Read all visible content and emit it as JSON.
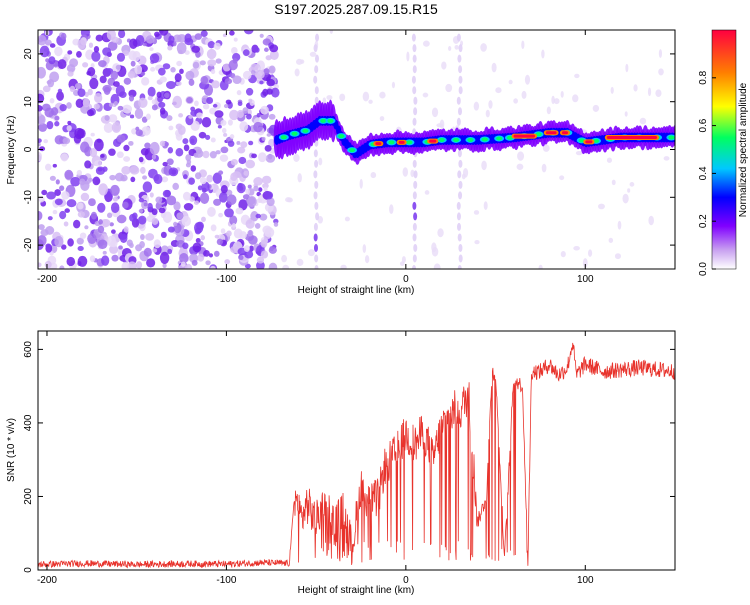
{
  "title": "S197.2025.287.09.15.R15",
  "chart_data": [
    {
      "type": "heatmap",
      "xlabel": "Height of straight line (km)",
      "ylabel": "Frequency (Hz)",
      "xlim": [
        -205,
        150
      ],
      "ylim": [
        -25,
        25
      ],
      "xticks": [
        -200,
        -100,
        0,
        100
      ],
      "yticks": [
        -20,
        -10,
        0,
        10,
        20
      ],
      "noise_region_x": [
        -205,
        -72
      ],
      "signal_track": {
        "x": [
          -72,
          -65,
          -55,
          -48,
          -40,
          -35,
          -28,
          -20,
          -10,
          0,
          10,
          20,
          40,
          60,
          80,
          90,
          100,
          120,
          150
        ],
        "freq": [
          2,
          3,
          4,
          6,
          6,
          2,
          -1,
          1,
          1.5,
          1.5,
          1.5,
          2,
          2,
          2.5,
          3.5,
          3.5,
          1.5,
          2.5,
          2.5
        ]
      },
      "colorbar": {
        "label": "Normalized spectral amplitude",
        "range": [
          0.0,
          1.0
        ],
        "ticks": [
          "0.0",
          "0.2",
          "0.4",
          "0.6",
          "0.8"
        ],
        "colors": [
          "#ffffff",
          "#c8a0f0",
          "#8000ff",
          "#0000ff",
          "#00c8ff",
          "#00ff60",
          "#ffff00",
          "#ff8000",
          "#ff0040"
        ]
      }
    },
    {
      "type": "line",
      "xlabel": "Height of straight line (km)",
      "ylabel": "SNR (10 * v/v)",
      "xlim": [
        -205,
        150
      ],
      "ylim": [
        0,
        650
      ],
      "xticks": [
        -200,
        -100,
        0,
        100
      ],
      "yticks": [
        0,
        200,
        400,
        600
      ],
      "color": "#e8332c",
      "series": [
        {
          "name": "SNR",
          "x": [
            -205,
            -180,
            -150,
            -120,
            -100,
            -80,
            -65,
            -62,
            -58,
            -55,
            -50,
            -45,
            -40,
            -35,
            -30,
            -25,
            -20,
            -15,
            -12,
            -10,
            -5,
            0,
            5,
            10,
            15,
            20,
            25,
            28,
            30,
            33,
            35,
            40,
            45,
            48,
            50,
            55,
            60,
            65,
            68,
            70,
            75,
            80,
            85,
            90,
            93,
            95,
            100,
            110,
            120,
            130,
            140,
            150
          ],
          "values": [
            15,
            18,
            15,
            17,
            16,
            20,
            18,
            200,
            140,
            180,
            130,
            200,
            120,
            160,
            60,
            230,
            180,
            200,
            280,
            290,
            320,
            370,
            340,
            380,
            300,
            390,
            420,
            440,
            430,
            460,
            480,
            130,
            200,
            540,
            530,
            30,
            520,
            500,
            20,
            540,
            540,
            560,
            530,
            550,
            620,
            530,
            560,
            540,
            545,
            550,
            545,
            540
          ]
        }
      ]
    }
  ]
}
